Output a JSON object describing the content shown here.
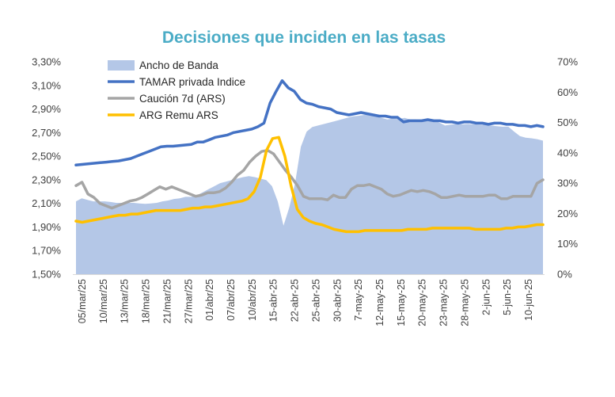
{
  "chart_data": {
    "type": "line",
    "title": "Decisiones que inciden en las tasas",
    "title_color": "#4bacc6",
    "left_axis": {
      "ticks": [
        "1,50%",
        "1,70%",
        "1,90%",
        "2,10%",
        "2,30%",
        "2,50%",
        "2,70%",
        "2,90%",
        "3,10%",
        "3,30%"
      ],
      "ylim": [
        1.5,
        3.3
      ]
    },
    "right_axis": {
      "ticks": [
        "0%",
        "10%",
        "20%",
        "30%",
        "40%",
        "50%",
        "60%",
        "70%"
      ],
      "ylim": [
        0,
        70
      ]
    },
    "x_tick_labels": [
      "05/mar/25",
      "10/mar/25",
      "13/mar/25",
      "18/mar/25",
      "21/mar/25",
      "27/mar/25",
      "01/abr/25",
      "07/abr/25",
      "10/abr/25",
      "15-abr-25",
      "22-abr-25",
      "25-abr-25",
      "30-abr-25",
      "7-may-25",
      "12-may-25",
      "15-may-25",
      "20-may-25",
      "23-may-25",
      "28-may-25",
      "2-jun-25",
      "5-jun-25",
      "10-jun-25"
    ],
    "legend": [
      "Ancho de Banda",
      "TAMAR privada Indice",
      "Caución 7d (ARS)",
      "ARG Remu ARS"
    ],
    "grid": false,
    "series": [
      {
        "name": "Ancho de Banda",
        "kind": "area",
        "axis": "right",
        "color": "#b4c7e7",
        "values": [
          24,
          25,
          24.5,
          24,
          24,
          24,
          23.8,
          23.5,
          23.5,
          23.5,
          23.5,
          23.3,
          23.2,
          23.3,
          23.5,
          24,
          24.3,
          24.8,
          25,
          25.5,
          25.5,
          26,
          27,
          28,
          29,
          30,
          30.5,
          31,
          31.5,
          32,
          32.3,
          32,
          31.5,
          31,
          29,
          24,
          16,
          22,
          30,
          42,
          47,
          48.5,
          49,
          49.5,
          50,
          50.5,
          51,
          51.5,
          52,
          52.2,
          52.5,
          52.5,
          52,
          51.5,
          51,
          51.3,
          51.2,
          51.5,
          51,
          51,
          50.5,
          50.8,
          51,
          50,
          49,
          49.3,
          49.5,
          49.4,
          49.5,
          49.4,
          49.3,
          49.2,
          49,
          48.8,
          48.6,
          48.6,
          47,
          45.5,
          45,
          44.8,
          44.5,
          44
        ]
      },
      {
        "name": "TAMAR privada Indice",
        "kind": "line",
        "axis": "left",
        "color": "#4472c4",
        "values": [
          2.425,
          2.43,
          2.435,
          2.44,
          2.445,
          2.45,
          2.455,
          2.46,
          2.47,
          2.48,
          2.5,
          2.52,
          2.54,
          2.56,
          2.58,
          2.585,
          2.585,
          2.59,
          2.595,
          2.6,
          2.62,
          2.62,
          2.64,
          2.66,
          2.67,
          2.68,
          2.7,
          2.71,
          2.72,
          2.73,
          2.75,
          2.78,
          2.95,
          3.05,
          3.14,
          3.08,
          3.05,
          2.98,
          2.95,
          2.94,
          2.92,
          2.91,
          2.9,
          2.87,
          2.86,
          2.85,
          2.86,
          2.87,
          2.86,
          2.85,
          2.84,
          2.84,
          2.83,
          2.83,
          2.79,
          2.8,
          2.8,
          2.8,
          2.81,
          2.8,
          2.8,
          2.79,
          2.79,
          2.78,
          2.79,
          2.79,
          2.78,
          2.78,
          2.77,
          2.78,
          2.78,
          2.77,
          2.77,
          2.76,
          2.76,
          2.75,
          2.76,
          2.75
        ]
      },
      {
        "name": "Caución 7d (ARS)",
        "kind": "line",
        "axis": "left",
        "color": "#a5a5a5",
        "values": [
          2.25,
          2.28,
          2.18,
          2.15,
          2.1,
          2.08,
          2.06,
          2.08,
          2.1,
          2.12,
          2.13,
          2.15,
          2.18,
          2.21,
          2.24,
          2.22,
          2.24,
          2.22,
          2.2,
          2.18,
          2.16,
          2.17,
          2.19,
          2.19,
          2.2,
          2.23,
          2.28,
          2.34,
          2.38,
          2.45,
          2.5,
          2.54,
          2.55,
          2.52,
          2.45,
          2.38,
          2.32,
          2.25,
          2.16,
          2.14,
          2.14,
          2.14,
          2.13,
          2.17,
          2.15,
          2.15,
          2.22,
          2.25,
          2.25,
          2.26,
          2.24,
          2.22,
          2.18,
          2.16,
          2.17,
          2.19,
          2.21,
          2.2,
          2.21,
          2.2,
          2.18,
          2.15,
          2.15,
          2.16,
          2.17,
          2.16,
          2.16,
          2.16,
          2.16,
          2.17,
          2.17,
          2.14,
          2.14,
          2.16,
          2.16,
          2.16,
          2.16,
          2.27,
          2.3
        ]
      },
      {
        "name": "ARG Remu ARS",
        "kind": "line",
        "axis": "left",
        "color": "#ffc000",
        "values": [
          1.95,
          1.94,
          1.95,
          1.96,
          1.97,
          1.98,
          1.99,
          2.0,
          2.0,
          2.01,
          2.01,
          2.02,
          2.03,
          2.04,
          2.04,
          2.04,
          2.04,
          2.04,
          2.05,
          2.06,
          2.06,
          2.07,
          2.07,
          2.08,
          2.09,
          2.1,
          2.11,
          2.12,
          2.14,
          2.2,
          2.32,
          2.55,
          2.65,
          2.66,
          2.5,
          2.25,
          2.05,
          1.98,
          1.95,
          1.93,
          1.92,
          1.9,
          1.88,
          1.87,
          1.86,
          1.86,
          1.86,
          1.87,
          1.87,
          1.87,
          1.87,
          1.87,
          1.87,
          1.87,
          1.88,
          1.88,
          1.88,
          1.88,
          1.89,
          1.89,
          1.89,
          1.89,
          1.89,
          1.89,
          1.89,
          1.88,
          1.88,
          1.88,
          1.88,
          1.88,
          1.89,
          1.89,
          1.9,
          1.9,
          1.91,
          1.92,
          1.92
        ]
      }
    ]
  }
}
